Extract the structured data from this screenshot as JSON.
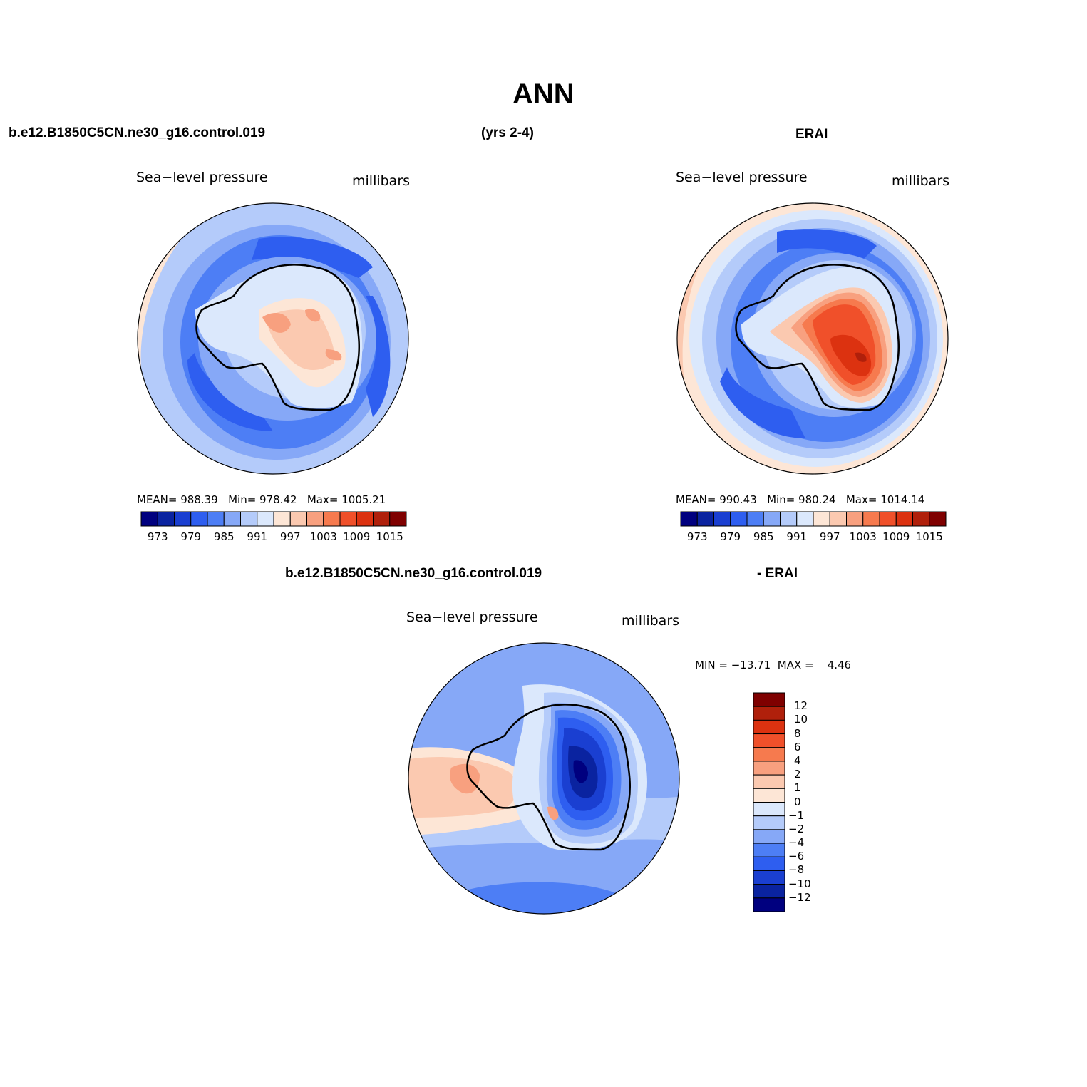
{
  "title": "ANN",
  "header": {
    "case_name": "b.e12.B1850C5CN.ne30_g16.control.019",
    "years": "(yrs 2-4)",
    "obs_name": "ERAI"
  },
  "diff_header": {
    "case_name": "b.e12.B1850C5CN.ne30_g16.control.019",
    "obs_name": "- ERAI"
  },
  "colors": {
    "coastline": "#000000",
    "abs_palette": [
      "#00007f",
      "#0a23a0",
      "#1a3fd1",
      "#2e5ef0",
      "#4d7ef5",
      "#86a8f7",
      "#b4cbfa",
      "#dbe8fc",
      "#fde6d6",
      "#fbc9b0",
      "#f8a07f",
      "#f67a4e",
      "#f0502a",
      "#dc3210",
      "#b0200b",
      "#7f0000"
    ],
    "diff_palette": [
      "#00007f",
      "#0a23a0",
      "#1a3fd1",
      "#2e5ef0",
      "#4d7ef5",
      "#86a8f7",
      "#b4cbfa",
      "#dbe8fc",
      "#fde6d6",
      "#fbc9b0",
      "#f8a07f",
      "#f67a4e",
      "#f0502a",
      "#dc3210",
      "#b0200b",
      "#7f0000"
    ]
  },
  "panels": [
    {
      "id": "model",
      "variable": "Sea−level pressure",
      "units": "millibars",
      "stats": {
        "mean_label": "MEAN=",
        "mean": "988.39",
        "min_label": "Min=",
        "min": "978.42",
        "max_label": "Max=",
        "max": "1005.21"
      },
      "colorbar_labels": [
        "973",
        "979",
        "985",
        "991",
        "997",
        "1003",
        "1009",
        "1015"
      ]
    },
    {
      "id": "obs",
      "variable": "Sea−level pressure",
      "units": "millibars",
      "stats": {
        "mean_label": "MEAN=",
        "mean": "990.43",
        "min_label": "Min=",
        "min": "980.24",
        "max_label": "Max=",
        "max": "1014.14"
      },
      "colorbar_labels": [
        "973",
        "979",
        "985",
        "991",
        "997",
        "1003",
        "1009",
        "1015"
      ]
    },
    {
      "id": "diff",
      "variable": "Sea−level pressure",
      "units": "millibars",
      "stats": {
        "min_label": "MIN =",
        "min": "−13.71",
        "max_label": "MAX =",
        "max": "4.46"
      },
      "colorbar_labels": [
        "12",
        "10",
        "8",
        "6",
        "4",
        "2",
        "1",
        "0",
        "−1",
        "−2",
        "−4",
        "−6",
        "−8",
        "−10",
        "−12"
      ]
    }
  ]
}
